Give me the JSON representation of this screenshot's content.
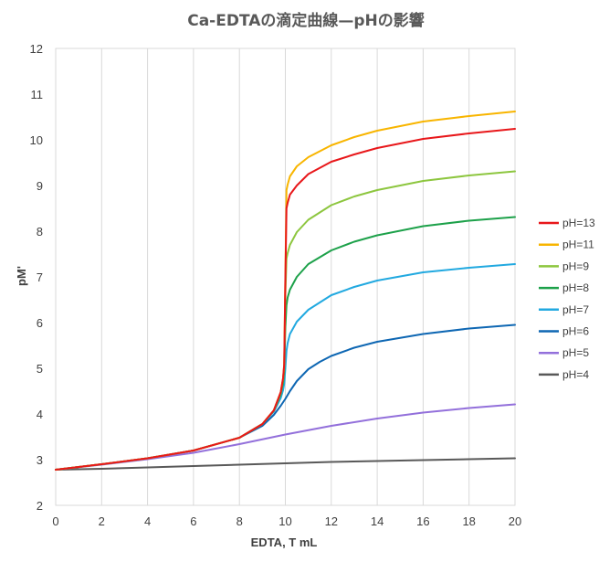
{
  "chart_data": {
    "type": "line",
    "title": "Ca-EDTAの滴定曲線—pHの影響",
    "xlabel": "EDTA, T mL",
    "ylabel": "pM'",
    "xlim": [
      0,
      20
    ],
    "ylim": [
      2,
      12
    ],
    "xticks": [
      0,
      2,
      4,
      6,
      8,
      10,
      12,
      14,
      16,
      18,
      20
    ],
    "yticks": [
      2,
      3,
      4,
      5,
      6,
      7,
      8,
      9,
      10,
      11,
      12
    ],
    "grid": "vertical",
    "legend_position": "right",
    "series": [
      {
        "name": "pH=13",
        "color": "#e8171a",
        "x": [
          0,
          2,
          4,
          6,
          8,
          9,
          9.5,
          9.8,
          9.9,
          9.95,
          10,
          10.05,
          10.1,
          10.2,
          10.5,
          11,
          12,
          13,
          14,
          16,
          18,
          20
        ],
        "y": [
          2.78,
          2.9,
          3.03,
          3.2,
          3.48,
          3.78,
          4.08,
          4.48,
          4.78,
          5.08,
          6.95,
          8.5,
          8.62,
          8.8,
          9.0,
          9.25,
          9.52,
          9.68,
          9.82,
          10.02,
          10.14,
          10.24
        ]
      },
      {
        "name": "pH=11",
        "color": "#f8b500",
        "x": [
          0,
          2,
          4,
          6,
          8,
          9,
          9.5,
          9.8,
          9.9,
          9.95,
          10,
          10.05,
          10.1,
          10.2,
          10.5,
          11,
          12,
          13,
          14,
          16,
          18,
          20
        ],
        "y": [
          2.78,
          2.9,
          3.03,
          3.2,
          3.48,
          3.78,
          4.08,
          4.48,
          4.78,
          5.08,
          7.0,
          8.9,
          9.02,
          9.2,
          9.42,
          9.62,
          9.88,
          10.06,
          10.2,
          10.4,
          10.52,
          10.62
        ]
      },
      {
        "name": "pH=9",
        "color": "#8dc63f",
        "x": [
          0,
          2,
          4,
          6,
          8,
          9,
          9.5,
          9.8,
          9.9,
          9.95,
          10,
          10.05,
          10.1,
          10.2,
          10.5,
          11,
          12,
          13,
          14,
          16,
          18,
          20
        ],
        "y": [
          2.78,
          2.9,
          3.03,
          3.2,
          3.48,
          3.78,
          4.08,
          4.47,
          4.76,
          5.05,
          6.6,
          7.4,
          7.52,
          7.7,
          7.98,
          8.25,
          8.57,
          8.76,
          8.9,
          9.1,
          9.22,
          9.31
        ]
      },
      {
        "name": "pH=8",
        "color": "#1da14a",
        "x": [
          0,
          2,
          4,
          6,
          8,
          9,
          9.5,
          9.8,
          9.9,
          9.95,
          10,
          10.05,
          10.1,
          10.2,
          10.5,
          11,
          12,
          13,
          14,
          16,
          18,
          20
        ],
        "y": [
          2.78,
          2.9,
          3.03,
          3.2,
          3.48,
          3.78,
          4.07,
          4.43,
          4.68,
          4.92,
          5.9,
          6.38,
          6.55,
          6.72,
          7.0,
          7.28,
          7.58,
          7.77,
          7.91,
          8.11,
          8.23,
          8.31
        ]
      },
      {
        "name": "pH=7",
        "color": "#22a9e0",
        "x": [
          0,
          2,
          4,
          6,
          8,
          9,
          9.5,
          9.8,
          9.9,
          9.95,
          10,
          10.05,
          10.1,
          10.2,
          10.5,
          11,
          12,
          13,
          14,
          16,
          18,
          20
        ],
        "y": [
          2.78,
          2.9,
          3.03,
          3.2,
          3.48,
          3.78,
          4.05,
          4.35,
          4.52,
          4.66,
          5.0,
          5.38,
          5.55,
          5.75,
          6.02,
          6.28,
          6.6,
          6.78,
          6.92,
          7.1,
          7.2,
          7.28
        ]
      },
      {
        "name": "pH=6",
        "color": "#0e67b3",
        "x": [
          0,
          2,
          4,
          6,
          8,
          9,
          9.5,
          9.8,
          10,
          10.2,
          10.5,
          11,
          11.5,
          12,
          13,
          14,
          16,
          18,
          20
        ],
        "y": [
          2.78,
          2.9,
          3.03,
          3.2,
          3.48,
          3.74,
          3.98,
          4.18,
          4.33,
          4.5,
          4.72,
          4.98,
          5.14,
          5.27,
          5.45,
          5.58,
          5.75,
          5.87,
          5.95
        ]
      },
      {
        "name": "pH=5",
        "color": "#9370db",
        "x": [
          0,
          2,
          4,
          6,
          8,
          10,
          12,
          14,
          16,
          18,
          20
        ],
        "y": [
          2.78,
          2.89,
          3.01,
          3.15,
          3.34,
          3.55,
          3.74,
          3.9,
          4.03,
          4.13,
          4.21
        ]
      },
      {
        "name": "pH=4",
        "color": "#595959",
        "x": [
          0,
          2,
          4,
          6,
          8,
          10,
          12,
          14,
          16,
          18,
          20
        ],
        "y": [
          2.78,
          2.8,
          2.83,
          2.86,
          2.89,
          2.92,
          2.95,
          2.97,
          2.99,
          3.01,
          3.03
        ]
      }
    ]
  }
}
